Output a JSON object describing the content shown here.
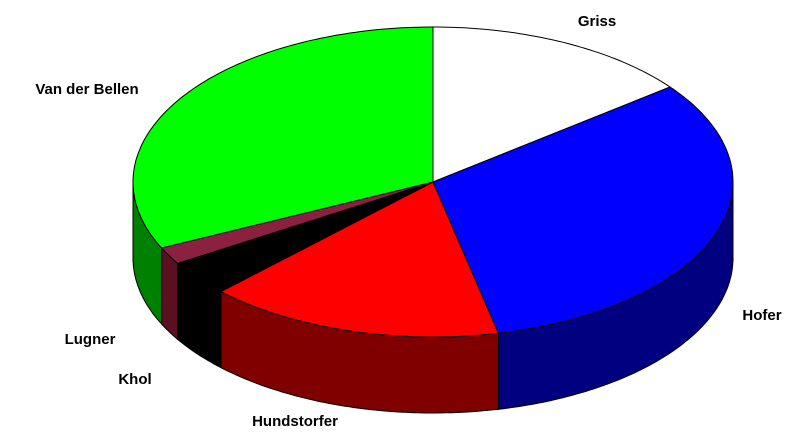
{
  "chart_data": {
    "type": "pie3d",
    "categories": [
      "Griss",
      "Hofer",
      "Hundstorfer",
      "Khol",
      "Lugner",
      "Van der Bellen"
    ],
    "values": [
      14.5,
      32,
      16,
      3.7,
      1.8,
      32
    ],
    "colors": [
      "#ffffff",
      "#0000ff",
      "#ff0000",
      "#000000",
      "#8b2040",
      "#00ff00"
    ],
    "side_colors": [
      "#d0d0d0",
      "#000080",
      "#800000",
      "#000000",
      "#5a1020",
      "#008000"
    ]
  }
}
